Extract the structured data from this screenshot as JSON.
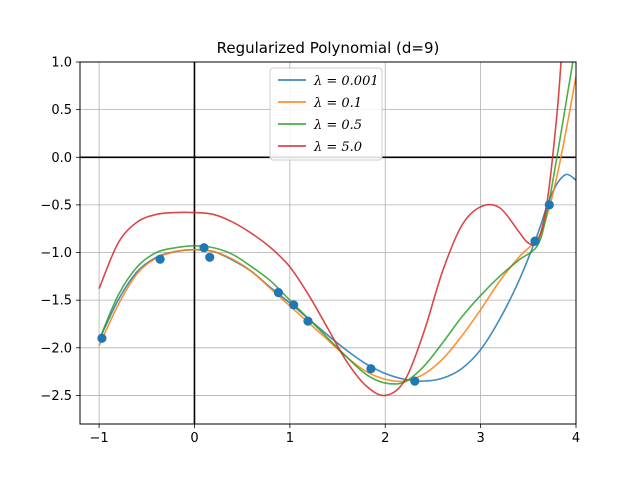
{
  "chart_data": {
    "type": "line",
    "title": "Regularized Polynomial (d=9)",
    "xlabel": "",
    "ylabel": "",
    "xlim": [
      -1.2,
      4.0
    ],
    "ylim": [
      -2.8,
      1.0
    ],
    "grid": true,
    "legend_position": "top-center",
    "x_ticks": [
      -1,
      0,
      1,
      2,
      3,
      4
    ],
    "x_tick_labels": [
      "−1",
      "0",
      "1",
      "2",
      "3",
      "4"
    ],
    "y_ticks": [
      -2.5,
      -2.0,
      -1.5,
      -1.0,
      -0.5,
      0.0,
      0.5,
      1.0
    ],
    "y_tick_labels": [
      "−2.5",
      "−2.0",
      "−1.5",
      "−1.0",
      "−0.5",
      "0.0",
      "0.5",
      "1.0"
    ],
    "scatter_points": {
      "color": "#1f77b4",
      "x": [
        -0.97,
        -0.36,
        0.1,
        0.16,
        0.88,
        1.04,
        1.19,
        1.85,
        2.31,
        3.57,
        3.72
      ],
      "y": [
        -1.9,
        -1.07,
        -0.95,
        -1.05,
        -1.42,
        -1.55,
        -1.72,
        -2.22,
        -2.35,
        -0.88,
        -0.5
      ]
    },
    "series": [
      {
        "name": "λ = 0.001",
        "legend_label": "λ = 0.001",
        "color": "#1f77b4",
        "x": [
          -1.0,
          -0.8,
          -0.6,
          -0.4,
          -0.2,
          0.0,
          0.2,
          0.4,
          0.6,
          0.8,
          1.0,
          1.2,
          1.4,
          1.6,
          1.8,
          2.0,
          2.2,
          2.4,
          2.6,
          2.8,
          3.0,
          3.2,
          3.4,
          3.6,
          3.7,
          3.8,
          3.9,
          4.0
        ],
        "y": [
          -1.92,
          -1.5,
          -1.2,
          -1.05,
          -0.99,
          -0.97,
          -0.99,
          -1.08,
          -1.2,
          -1.37,
          -1.53,
          -1.7,
          -1.87,
          -2.03,
          -2.17,
          -2.27,
          -2.33,
          -2.35,
          -2.32,
          -2.22,
          -2.02,
          -1.7,
          -1.3,
          -0.8,
          -0.5,
          -0.28,
          -0.18,
          -0.24
        ]
      },
      {
        "name": "λ = 0.1",
        "legend_label": "λ = 0.1",
        "color": "#ff7f0e",
        "x": [
          -1.0,
          -0.8,
          -0.6,
          -0.4,
          -0.2,
          0.0,
          0.2,
          0.4,
          0.6,
          0.8,
          1.0,
          1.2,
          1.4,
          1.6,
          1.8,
          2.0,
          2.2,
          2.4,
          2.6,
          2.8,
          3.0,
          3.2,
          3.4,
          3.6,
          3.7,
          3.8,
          3.9,
          4.0
        ],
        "y": [
          -1.98,
          -1.55,
          -1.22,
          -1.06,
          -0.99,
          -0.97,
          -0.99,
          -1.07,
          -1.2,
          -1.38,
          -1.56,
          -1.74,
          -1.92,
          -2.1,
          -2.25,
          -2.33,
          -2.35,
          -2.28,
          -2.12,
          -1.88,
          -1.6,
          -1.3,
          -1.05,
          -0.85,
          -0.6,
          -0.2,
          0.3,
          0.85
        ]
      },
      {
        "name": "λ = 0.5",
        "legend_label": "λ = 0.5",
        "color": "#2ca02c",
        "x": [
          -1.0,
          -0.8,
          -0.6,
          -0.4,
          -0.2,
          0.0,
          0.2,
          0.4,
          0.6,
          0.8,
          1.0,
          1.2,
          1.4,
          1.6,
          1.8,
          2.0,
          2.2,
          2.4,
          2.6,
          2.8,
          3.0,
          3.2,
          3.4,
          3.6,
          3.7,
          3.8,
          3.9,
          4.0
        ],
        "y": [
          -1.92,
          -1.45,
          -1.15,
          -1.0,
          -0.95,
          -0.93,
          -0.95,
          -1.02,
          -1.15,
          -1.3,
          -1.5,
          -1.7,
          -1.9,
          -2.1,
          -2.28,
          -2.37,
          -2.36,
          -2.2,
          -1.95,
          -1.68,
          -1.45,
          -1.25,
          -1.08,
          -0.92,
          -0.55,
          0.0,
          0.6,
          1.2
        ]
      },
      {
        "name": "λ = 5.0",
        "legend_label": "λ = 5.0",
        "color": "#d62728",
        "x": [
          -1.0,
          -0.8,
          -0.6,
          -0.4,
          -0.2,
          0.0,
          0.2,
          0.4,
          0.6,
          0.8,
          1.0,
          1.2,
          1.4,
          1.6,
          1.8,
          2.0,
          2.2,
          2.4,
          2.6,
          2.8,
          3.0,
          3.2,
          3.4,
          3.5,
          3.6,
          3.7,
          3.8,
          3.85
        ],
        "y": [
          -1.38,
          -0.9,
          -0.68,
          -0.6,
          -0.58,
          -0.58,
          -0.6,
          -0.68,
          -0.8,
          -0.95,
          -1.15,
          -1.45,
          -1.8,
          -2.15,
          -2.4,
          -2.5,
          -2.35,
          -1.85,
          -1.2,
          -0.72,
          -0.52,
          -0.53,
          -0.78,
          -0.9,
          -0.88,
          -0.45,
          0.45,
          1.1
        ]
      }
    ]
  }
}
